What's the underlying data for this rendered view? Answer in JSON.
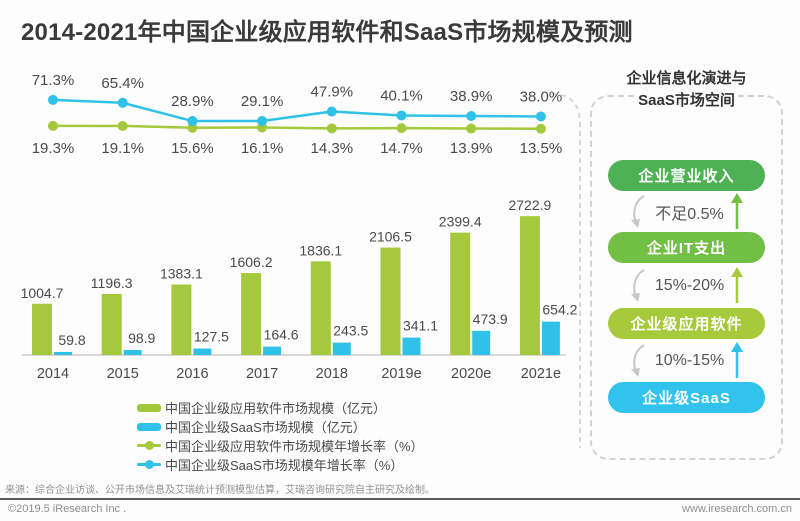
{
  "page": {
    "title": "2014-2021年中国企业级应用软件和SaaS市场规模及预测",
    "source": "来源：综合企业访谈、公开市场信息及艾瑞统计预测模型估算，艾瑞咨询研究院自主研究及绘制。",
    "footer": {
      "left": "©2019.5 iResearch Inc .",
      "right": "www.iresearch.com.cn"
    }
  },
  "colors": {
    "bar_green": "#a5c93c",
    "bar_blue": "#2fc1e7",
    "axis_line": "#d8d8d8",
    "label_gray": "#4a4a4a",
    "dashed_border": "#d2d2d2"
  },
  "chart_data": {
    "type": "bar",
    "subtype": "grouped bars with two growth-rate line series above",
    "title": "2014-2021年中国企业级应用软件和SaaS市场规模及预测",
    "categories": [
      "2014",
      "2015",
      "2016",
      "2017",
      "2018",
      "2019e",
      "2020e",
      "2021e"
    ],
    "series": [
      {
        "name": "中国企业级应用软件市场规模（亿元）",
        "type": "bar",
        "color": "#a5c93c",
        "values": [
          1004.7,
          1196.3,
          1383.1,
          1606.2,
          1836.1,
          2106.5,
          2399.4,
          2722.9
        ]
      },
      {
        "name": "中国企业级SaaS市场规模（亿元）",
        "type": "bar",
        "color": "#2fc1e7",
        "values": [
          59.8,
          98.9,
          127.5,
          164.6,
          243.5,
          341.1,
          473.9,
          654.2
        ]
      },
      {
        "name": "中国企业级应用软件市场规模年增长率（%）",
        "type": "line",
        "color": "#a5c93c",
        "values": [
          19.3,
          19.1,
          15.6,
          16.1,
          14.3,
          14.7,
          13.9,
          13.5
        ]
      },
      {
        "name": "中国企业级SaaS市场规模年增长率（%）",
        "type": "line",
        "color": "#2fc1e7",
        "values": [
          71.3,
          65.4,
          28.9,
          29.1,
          47.9,
          40.1,
          38.9,
          38.0
        ]
      }
    ],
    "value_labels": true,
    "gridlines": false,
    "legend_position": "bottom-left",
    "x_axis_baseline_only": true
  },
  "side_panel": {
    "title_line1": "企业信息化演进与",
    "title_line2": "SaaS市场空间",
    "pills": [
      {
        "label": "企业营业收入",
        "color": "#4eb254"
      },
      {
        "label": "企业IT支出",
        "color": "#72bf45"
      },
      {
        "label": "企业级应用软件",
        "color": "#a6ca3b"
      },
      {
        "label": "企业级SaaS",
        "color": "#32c3ec"
      }
    ],
    "gaps": [
      {
        "label": "不足0.5%",
        "arrow_color": "#72bf45"
      },
      {
        "label": "15%-20%",
        "arrow_color": "#a6ca3b"
      },
      {
        "label": "10%-15%",
        "arrow_color": "#32c3ec"
      }
    ]
  }
}
